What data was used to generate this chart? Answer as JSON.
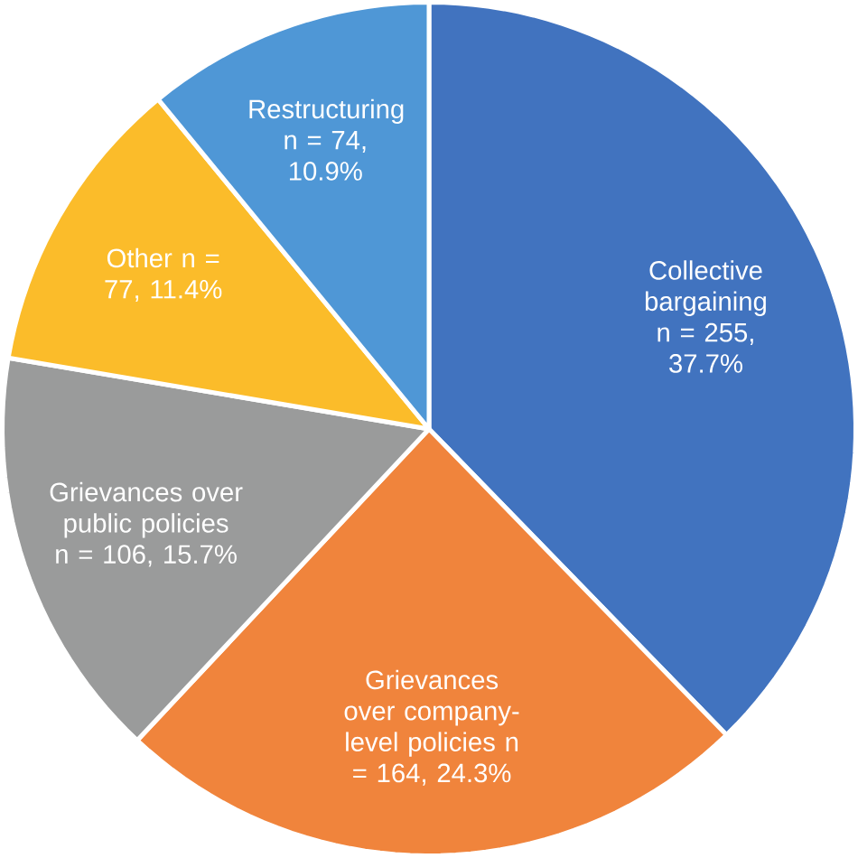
{
  "chart_data": {
    "type": "pie",
    "categories": [
      "Collective bargaining",
      "Grievances over company-level policies",
      "Grievances over public policies",
      "Other",
      "Restructuring"
    ],
    "values": [
      255,
      164,
      106,
      77,
      74
    ],
    "value_labels": [
      "n = 255, 37.7%",
      "n = 164, 24.3%",
      "n = 106, 15.7%",
      "n = 77, 11.4%",
      "n = 74, 10.9%"
    ],
    "colors": [
      "#4173bf",
      "#f0843c",
      "#9a9b9b",
      "#fbbc2a",
      "#4f97d6"
    ]
  }
}
